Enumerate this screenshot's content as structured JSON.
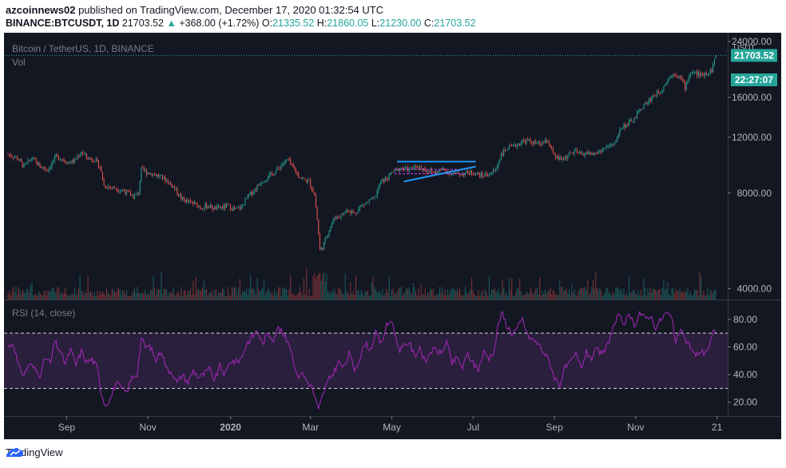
{
  "header": {
    "publisher": "azcoinnews02",
    "published_text": "published on TradingView.com, December 17, 2020 01:32:54 UTC",
    "symbol": "BINANCE:BTCUSDT, 1D",
    "last": "21703.52",
    "change_arrow": "▲",
    "change": "+368.00 (+1.72%)",
    "o_label": "O:",
    "o_value": "21335.52",
    "h_label": "H:",
    "h_value": "21860.05",
    "l_label": "L:",
    "l_value": "21230.00",
    "c_label": "C:",
    "c_value": "21703.52"
  },
  "legend": {
    "title": "Bitcoin / TetherUS, 1D, BINANCE",
    "vol": "Vol",
    "rsi": "RSI (14, close)"
  },
  "colors": {
    "background": "#131722",
    "up": "#26a69a",
    "down": "#ef5350",
    "rsi_line": "#9c27b0",
    "rsi_band": "#2a1f3d",
    "pattern_blue": "#2196f3",
    "pattern_pink": "#e040fb"
  },
  "price_pane": {
    "currency": "USDT",
    "scale": "log",
    "ylim": [
      3700,
      25000
    ],
    "ticks": [
      "24000.00",
      "16000.00",
      "12000.00",
      "8000.00",
      "4000.00"
    ],
    "tick_values": [
      24000,
      16000,
      12000,
      8000,
      4000
    ],
    "last_price_label": "21703.52",
    "countdown_label": "22:27:07"
  },
  "rsi_pane": {
    "ylim": [
      10,
      92
    ],
    "ticks": [
      "80.00",
      "60.00",
      "40.00",
      "20.00"
    ],
    "tick_values": [
      80,
      60,
      40,
      20
    ],
    "bands": [
      70,
      30
    ]
  },
  "time_axis": {
    "labels": [
      "Sep",
      "Nov",
      "2020",
      "Mar",
      "May",
      "Jul",
      "Sep",
      "Nov",
      "21"
    ],
    "label_days": [
      44,
      105,
      167,
      227,
      288,
      349,
      410,
      471,
      532
    ],
    "bold": [
      false,
      false,
      true,
      false,
      false,
      false,
      false,
      false,
      false
    ]
  },
  "chart_data": {
    "type": "candlestick",
    "title": "Bitcoin / TetherUS, 1D, BINANCE",
    "x_start": "2019-07-18",
    "x_end": "2020-12-17",
    "price_path": [
      [
        0,
        10600
      ],
      [
        7,
        10300
      ],
      [
        12,
        9700
      ],
      [
        18,
        10300
      ],
      [
        24,
        9700
      ],
      [
        30,
        9500
      ],
      [
        36,
        10400
      ],
      [
        40,
        10300
      ],
      [
        45,
        10000
      ],
      [
        50,
        10100
      ],
      [
        55,
        10800
      ],
      [
        60,
        10300
      ],
      [
        65,
        10200
      ],
      [
        69,
        9700
      ],
      [
        72,
        8450
      ],
      [
        80,
        8300
      ],
      [
        88,
        8100
      ],
      [
        94,
        7800
      ],
      [
        98,
        8000
      ],
      [
        100,
        9500
      ],
      [
        104,
        9300
      ],
      [
        110,
        9150
      ],
      [
        115,
        9000
      ],
      [
        120,
        8700
      ],
      [
        125,
        8300
      ],
      [
        130,
        7700
      ],
      [
        135,
        7500
      ],
      [
        140,
        7400
      ],
      [
        145,
        7200
      ],
      [
        150,
        7300
      ],
      [
        155,
        7150
      ],
      [
        160,
        7200
      ],
      [
        165,
        7300
      ],
      [
        170,
        7100
      ],
      [
        175,
        7200
      ],
      [
        180,
        7800
      ],
      [
        185,
        8200
      ],
      [
        190,
        8700
      ],
      [
        195,
        9000
      ],
      [
        200,
        9300
      ],
      [
        205,
        9800
      ],
      [
        210,
        10200
      ],
      [
        213,
        9700
      ],
      [
        218,
        9100
      ],
      [
        222,
        8800
      ],
      [
        226,
        8700
      ],
      [
        230,
        7900
      ],
      [
        234,
        5300
      ],
      [
        236,
        5400
      ],
      [
        240,
        6000
      ],
      [
        245,
        6700
      ],
      [
        250,
        6800
      ],
      [
        255,
        7100
      ],
      [
        260,
        6900
      ],
      [
        265,
        7300
      ],
      [
        270,
        7500
      ],
      [
        275,
        7700
      ],
      [
        280,
        8700
      ],
      [
        285,
        8900
      ],
      [
        288,
        9300
      ],
      [
        295,
        9600
      ],
      [
        300,
        9500
      ],
      [
        308,
        9700
      ],
      [
        315,
        9400
      ],
      [
        320,
        9300
      ],
      [
        327,
        9500
      ],
      [
        333,
        9200
      ],
      [
        340,
        9200
      ],
      [
        348,
        9300
      ],
      [
        355,
        9100
      ],
      [
        362,
        9200
      ],
      [
        366,
        9500
      ],
      [
        370,
        10600
      ],
      [
        375,
        11100
      ],
      [
        380,
        11200
      ],
      [
        385,
        11600
      ],
      [
        390,
        11700
      ],
      [
        395,
        11500
      ],
      [
        400,
        11400
      ],
      [
        405,
        11700
      ],
      [
        410,
        10400
      ],
      [
        415,
        10200
      ],
      [
        420,
        10500
      ],
      [
        425,
        10800
      ],
      [
        430,
        10600
      ],
      [
        435,
        10700
      ],
      [
        440,
        10600
      ],
      [
        445,
        10900
      ],
      [
        450,
        11200
      ],
      [
        455,
        11400
      ],
      [
        460,
        12900
      ],
      [
        465,
        13200
      ],
      [
        470,
        13700
      ],
      [
        475,
        14800
      ],
      [
        480,
        15500
      ],
      [
        485,
        16300
      ],
      [
        490,
        16800
      ],
      [
        495,
        18300
      ],
      [
        500,
        19100
      ],
      [
        504,
        18700
      ],
      [
        508,
        17200
      ],
      [
        512,
        19200
      ],
      [
        516,
        19100
      ],
      [
        520,
        18800
      ],
      [
        525,
        19200
      ],
      [
        528,
        19500
      ],
      [
        530,
        21000
      ],
      [
        531,
        21703.52
      ]
    ],
    "triangle_pattern": {
      "resistance": [
        [
          292,
          10050
        ],
        [
          351,
          10050
        ]
      ],
      "support": [
        [
          297,
          8700
        ],
        [
          351,
          9700
        ]
      ],
      "pink_top": [
        [
          290,
          9500
        ],
        [
          344,
          9500
        ]
      ],
      "pink_bottom": [
        [
          290,
          9200
        ],
        [
          344,
          9200
        ]
      ]
    },
    "rsi_path": [
      [
        0,
        60
      ],
      [
        4,
        63
      ],
      [
        8,
        45
      ],
      [
        12,
        40
      ],
      [
        16,
        48
      ],
      [
        20,
        44
      ],
      [
        24,
        40
      ],
      [
        28,
        52
      ],
      [
        32,
        48
      ],
      [
        35,
        64
      ],
      [
        39,
        57
      ],
      [
        43,
        48
      ],
      [
        47,
        58
      ],
      [
        51,
        47
      ],
      [
        55,
        57
      ],
      [
        59,
        49
      ],
      [
        63,
        51
      ],
      [
        67,
        45
      ],
      [
        70,
        27
      ],
      [
        73,
        18
      ],
      [
        77,
        23
      ],
      [
        81,
        34
      ],
      [
        85,
        30
      ],
      [
        89,
        27
      ],
      [
        93,
        38
      ],
      [
        97,
        41
      ],
      [
        100,
        66
      ],
      [
        103,
        60
      ],
      [
        107,
        60
      ],
      [
        111,
        50
      ],
      [
        115,
        58
      ],
      [
        119,
        44
      ],
      [
        123,
        42
      ],
      [
        127,
        34
      ],
      [
        131,
        40
      ],
      [
        135,
        34
      ],
      [
        139,
        43
      ],
      [
        143,
        38
      ],
      [
        147,
        40
      ],
      [
        151,
        44
      ],
      [
        155,
        36
      ],
      [
        159,
        46
      ],
      [
        163,
        40
      ],
      [
        167,
        50
      ],
      [
        171,
        49
      ],
      [
        175,
        52
      ],
      [
        179,
        62
      ],
      [
        183,
        67
      ],
      [
        187,
        72
      ],
      [
        191,
        62
      ],
      [
        195,
        70
      ],
      [
        199,
        66
      ],
      [
        203,
        74
      ],
      [
        207,
        68
      ],
      [
        211,
        63
      ],
      [
        214,
        52
      ],
      [
        217,
        38
      ],
      [
        220,
        42
      ],
      [
        224,
        36
      ],
      [
        228,
        31
      ],
      [
        231,
        21
      ],
      [
        233,
        14
      ],
      [
        236,
        25
      ],
      [
        240,
        35
      ],
      [
        244,
        41
      ],
      [
        248,
        49
      ],
      [
        252,
        45
      ],
      [
        256,
        55
      ],
      [
        260,
        44
      ],
      [
        264,
        52
      ],
      [
        268,
        63
      ],
      [
        272,
        58
      ],
      [
        276,
        70
      ],
      [
        280,
        62
      ],
      [
        284,
        75
      ],
      [
        288,
        80
      ],
      [
        291,
        66
      ],
      [
        294,
        58
      ],
      [
        297,
        60
      ],
      [
        301,
        64
      ],
      [
        305,
        53
      ],
      [
        309,
        60
      ],
      [
        313,
        48
      ],
      [
        317,
        57
      ],
      [
        321,
        58
      ],
      [
        325,
        55
      ],
      [
        329,
        64
      ],
      [
        333,
        48
      ],
      [
        337,
        52
      ],
      [
        341,
        45
      ],
      [
        345,
        55
      ],
      [
        349,
        48
      ],
      [
        353,
        44
      ],
      [
        357,
        56
      ],
      [
        361,
        52
      ],
      [
        365,
        58
      ],
      [
        368,
        78
      ],
      [
        371,
        84
      ],
      [
        374,
        76
      ],
      [
        378,
        70
      ],
      [
        382,
        73
      ],
      [
        386,
        80
      ],
      [
        390,
        68
      ],
      [
        394,
        65
      ],
      [
        398,
        62
      ],
      [
        402,
        56
      ],
      [
        406,
        50
      ],
      [
        410,
        38
      ],
      [
        414,
        33
      ],
      [
        418,
        45
      ],
      [
        422,
        48
      ],
      [
        426,
        55
      ],
      [
        430,
        45
      ],
      [
        434,
        56
      ],
      [
        438,
        52
      ],
      [
        442,
        58
      ],
      [
        446,
        54
      ],
      [
        450,
        62
      ],
      [
        454,
        74
      ],
      [
        458,
        82
      ],
      [
        462,
        77
      ],
      [
        466,
        82
      ],
      [
        470,
        76
      ],
      [
        474,
        85
      ],
      [
        478,
        80
      ],
      [
        482,
        83
      ],
      [
        486,
        74
      ],
      [
        490,
        80
      ],
      [
        494,
        85
      ],
      [
        498,
        81
      ],
      [
        501,
        62
      ],
      [
        504,
        72
      ],
      [
        508,
        66
      ],
      [
        512,
        60
      ],
      [
        516,
        53
      ],
      [
        519,
        57
      ],
      [
        522,
        56
      ],
      [
        526,
        60
      ],
      [
        529,
        70
      ],
      [
        531,
        72
      ]
    ],
    "x_labels": [
      "Sep",
      "Nov",
      "2020",
      "Mar",
      "May",
      "Jul",
      "Sep",
      "Nov",
      "21"
    ],
    "y_ticks": [
      24000,
      16000,
      12000,
      8000,
      4000
    ]
  },
  "footer": {
    "brand": "TradingView"
  }
}
